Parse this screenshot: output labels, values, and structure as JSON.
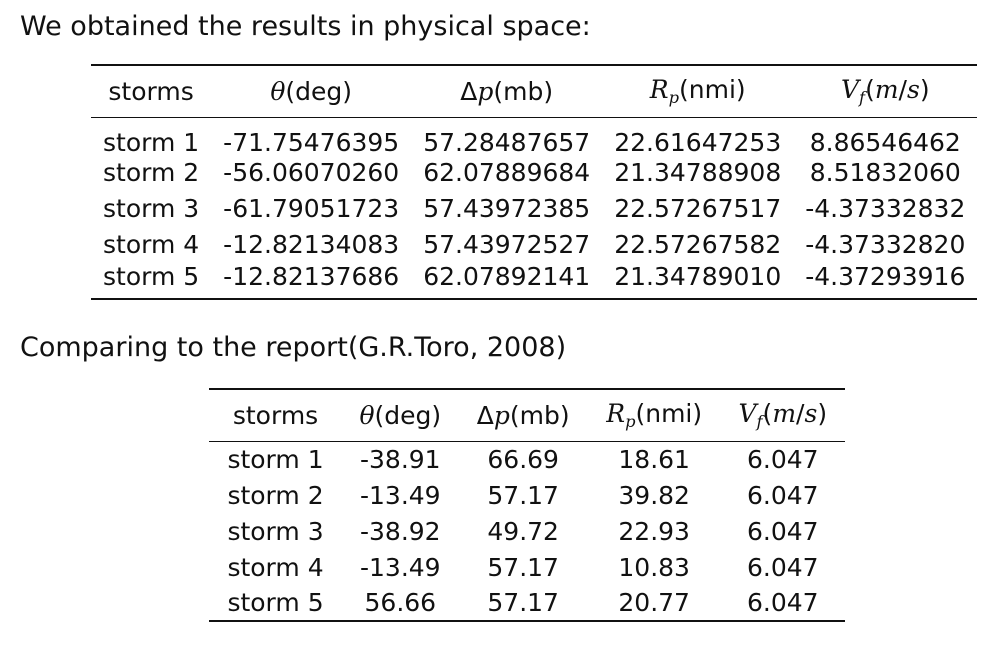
{
  "intro_text": "We obtained the results in physical space:",
  "compare_text": "Comparing to the report(G.R.Toro, 2008)",
  "obtained_table": {
    "headers": [
      "storms",
      "θ(deg)",
      "Δp(mb)",
      "Rp(nmi)",
      "Vf(m/s)"
    ],
    "rows": [
      [
        "storm 1",
        "-71.75476395",
        "57.28487657",
        "22.61647253",
        "8.86546462"
      ],
      [
        "storm 2",
        "-56.06070260",
        "62.07889684",
        "21.34788908",
        "8.51832060"
      ],
      [
        "storm 3",
        "-61.79051723",
        "57.43972385",
        "22.57267517",
        "-4.37332832"
      ],
      [
        "storm 4",
        "-12.82134083",
        "57.43972527",
        "22.57267582",
        "-4.37332820"
      ],
      [
        "storm 5",
        "-12.82137686",
        "62.07892141",
        "21.34789010",
        "-4.37293916"
      ]
    ]
  },
  "report_table": {
    "headers": [
      "storms",
      "θ(deg)",
      "Δp(mb)",
      "Rp(nmi)",
      "Vf(m/s)"
    ],
    "rows": [
      [
        "storm 1",
        "-38.91",
        "66.69",
        "18.61",
        "6.047"
      ],
      [
        "storm 2",
        "-13.49",
        "57.17",
        "39.82",
        "6.047"
      ],
      [
        "storm 3",
        "-38.92",
        "49.72",
        "22.93",
        "6.047"
      ],
      [
        "storm 4",
        "-13.49",
        "57.17",
        "10.83",
        "6.047"
      ],
      [
        "storm 5",
        "56.66",
        "57.17",
        "20.77",
        "6.047"
      ]
    ]
  }
}
